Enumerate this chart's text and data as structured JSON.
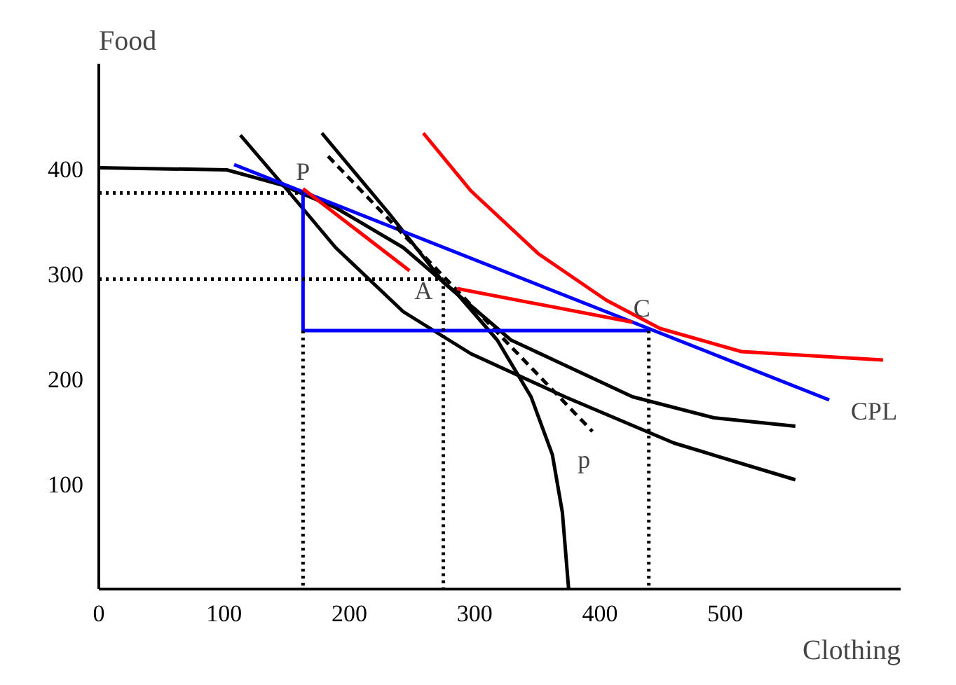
{
  "chart_data": {
    "type": "line",
    "xlabel": "Clothing",
    "ylabel": "Food",
    "xlim": [
      0,
      640
    ],
    "ylim": [
      0,
      500
    ],
    "xticks": [
      0,
      100,
      200,
      300,
      400,
      500
    ],
    "yticks": [
      100,
      200,
      300,
      400
    ],
    "grid": false,
    "series": [
      {
        "color": "#000000",
        "x": [
          0,
          102,
          145,
          189,
          243,
          286,
          318,
          345,
          362,
          370,
          375
        ],
        "values": [
          401,
          399,
          385,
          363,
          325,
          281,
          237,
          183,
          128,
          73,
          0
        ]
      },
      {
        "color": "#000000",
        "x": [
          178,
          232,
          275,
          329,
          426,
          491,
          556
        ],
        "values": [
          434,
          357,
          292,
          237,
          183,
          163,
          155
        ]
      },
      {
        "color": "#000000",
        "x": [
          113,
          151,
          189,
          243,
          297,
          372,
          459,
          556
        ],
        "values": [
          432,
          379,
          325,
          264,
          224,
          183,
          139,
          104
        ]
      },
      {
        "color": "#ff0000",
        "x": [
          259,
          297,
          351,
          405,
          448,
          513,
          626
        ],
        "values": [
          434,
          379,
          319,
          275,
          248,
          226,
          218
        ]
      },
      {
        "color": "#0000ff",
        "x": [
          108,
          583
        ],
        "values": [
          404,
          180
        ]
      },
      {
        "color": "#000000",
        "line_style": "dashed",
        "x": [
          183,
          394
        ],
        "values": [
          412,
          150
        ]
      },
      {
        "color": "#0000ff",
        "x": [
          163,
          163,
          439
        ],
        "values": [
          379,
          246,
          246
        ]
      },
      {
        "color": "#ff0000",
        "x": [
          248,
          163
        ],
        "values": [
          303,
          381
        ]
      },
      {
        "color": "#ff0000",
        "x": [
          286,
          426
        ],
        "values": [
          286,
          254
        ]
      },
      {
        "color": "#000000",
        "line_style": "dotted",
        "x": [
          0,
          163
        ],
        "values": [
          377,
          377
        ]
      },
      {
        "color": "#000000",
        "line_style": "dotted",
        "x": [
          0,
          275
        ],
        "values": [
          295,
          295
        ]
      },
      {
        "color": "#000000",
        "line_style": "dotted",
        "x": [
          163,
          163
        ],
        "values": [
          246,
          0
        ]
      },
      {
        "color": "#000000",
        "line_style": "dotted",
        "x": [
          275,
          275
        ],
        "values": [
          295,
          0
        ]
      },
      {
        "color": "#000000",
        "line_style": "dotted",
        "x": [
          439,
          439
        ],
        "values": [
          246,
          0
        ]
      }
    ],
    "annotations": [
      {
        "text": "P",
        "x": 163,
        "y": 379
      },
      {
        "text": "A",
        "x": 248,
        "y": 303
      },
      {
        "text": "C",
        "x": 439,
        "y": 246
      },
      {
        "text": "CPL",
        "x": 583,
        "y": 180
      },
      {
        "text": "p",
        "x": 394,
        "y": 150
      }
    ]
  }
}
